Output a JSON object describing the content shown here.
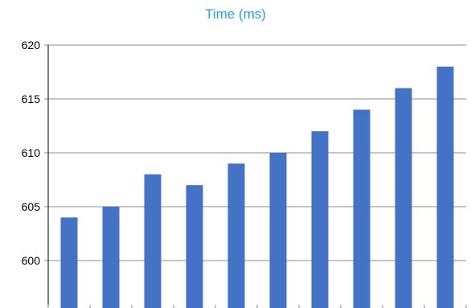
{
  "chart_data": {
    "type": "bar",
    "title": "Time (ms)",
    "xlabel": "",
    "ylabel": "",
    "categories": [
      "",
      "",
      "",
      "",
      "",
      "",
      "",
      "",
      "",
      ""
    ],
    "values": [
      604,
      605,
      608,
      607,
      609,
      610,
      612,
      614,
      616,
      618
    ],
    "ylim": [
      596,
      620
    ],
    "yticks": [
      600,
      605,
      610,
      615,
      620
    ],
    "grid": true,
    "legend": "none",
    "colors": {
      "bar": "#4472C4",
      "title": "#29A3D6",
      "grid": "#8C8C8C",
      "axis": "#000000"
    }
  }
}
